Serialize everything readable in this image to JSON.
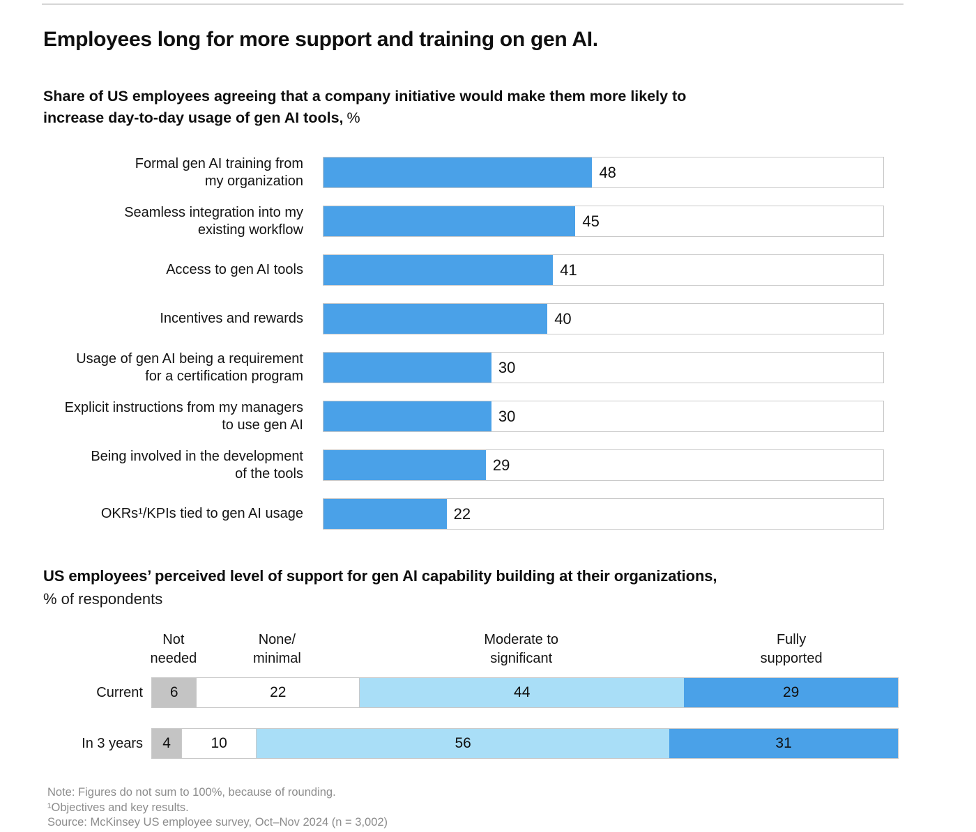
{
  "page": {
    "title": "Employees long for more support and training on gen AI."
  },
  "colors": {
    "bar_blue": "#4aa1e8",
    "light_blue": "#a9def7",
    "gray_segment": "#c4c4c4",
    "white_segment": "#ffffff",
    "track_border": "#c9c9c9",
    "rule": "#d6d6d6",
    "footnote_text": "#8c8c8c"
  },
  "chart_data": [
    {
      "type": "bar",
      "orientation": "horizontal",
      "title": "Share of US employees agreeing that a company initiative would make them more likely to\nincrease day-to-day usage of gen AI tools,",
      "unit": "%",
      "xlim": [
        0,
        100
      ],
      "grid": false,
      "bar_color": "#4aa1e8",
      "categories": [
        "Formal gen AI training from\nmy organization",
        "Seamless integration into my\nexisting workflow",
        "Access to gen AI tools",
        "Incentives and rewards",
        "Usage of gen AI being a requirement\nfor a certification program",
        "Explicit instructions from my managers\nto use gen AI",
        "Being involved in the development\nof the tools",
        "OKRs¹/KPIs tied to gen AI usage"
      ],
      "values": [
        48,
        45,
        41,
        40,
        30,
        30,
        29,
        22
      ]
    },
    {
      "type": "bar",
      "subtype": "stacked",
      "orientation": "horizontal",
      "title": "US employees’ perceived level of support for gen AI capability building at their organizations,",
      "unit": "% of respondents",
      "categories": [
        "Current",
        "In 3 years"
      ],
      "legend_position": "top",
      "series": [
        {
          "name": "Not\nneeded",
          "color": "#c4c4c4",
          "values": [
            6,
            4
          ]
        },
        {
          "name": "None/\nminimal",
          "color": "#ffffff",
          "values": [
            22,
            10
          ]
        },
        {
          "name": "Moderate to\nsignificant",
          "color": "#a9def7",
          "values": [
            44,
            56
          ]
        },
        {
          "name": "Fully\nsupported",
          "color": "#4aa1e8",
          "values": [
            29,
            31
          ]
        }
      ]
    }
  ],
  "footnotes": [
    "Note: Figures do not sum to 100%, because of rounding.",
    "¹Objectives and key results.",
    "Source: McKinsey US employee survey, Oct–Nov 2024 (n = 3,002)"
  ]
}
